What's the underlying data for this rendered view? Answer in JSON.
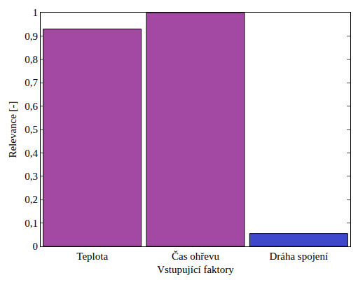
{
  "chart_data": {
    "type": "bar",
    "x_label": "Vstupující faktory",
    "y_label": "Relevance [-]",
    "categories": [
      "Teplota",
      "Čas ohřevu",
      "Dráha spojení"
    ],
    "values": [
      0.93,
      1.0,
      0.055
    ],
    "colors": [
      "#a349a4",
      "#a349a4",
      "#3f48cc"
    ],
    "ylim": [
      0,
      1
    ],
    "yticks": [
      0,
      {
        "value": 0.1,
        "label": "0,1"
      },
      {
        "value": 0.2,
        "label": "0,2"
      },
      {
        "value": 0.3,
        "label": "0,3"
      },
      {
        "value": 0.4,
        "label": "0,4"
      },
      {
        "value": 0.5,
        "label": "0,5"
      },
      {
        "value": 0.6,
        "label": "0,6"
      },
      {
        "value": 0.7,
        "label": "0,7"
      },
      {
        "value": 0.8,
        "label": "0,8"
      },
      {
        "value": 0.9,
        "label": "0,9"
      },
      1
    ],
    "grid": false
  }
}
